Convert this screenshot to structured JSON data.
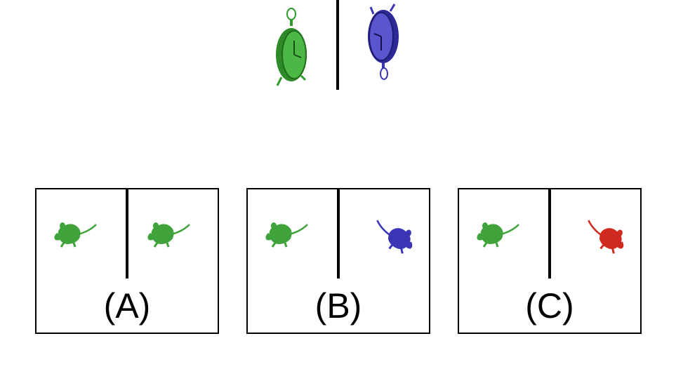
{
  "question": {
    "left_object": {
      "icon": "clock-icon",
      "color": "#2e9a2a",
      "orientation": "hanger-up"
    },
    "right_object": {
      "icon": "clock-icon",
      "color": "#3a35b5",
      "orientation": "hanger-down"
    }
  },
  "options": [
    {
      "label": "(A)",
      "left": {
        "icon": "mouse-icon",
        "color": "#3fa23a",
        "orientation": "normal"
      },
      "right": {
        "icon": "mouse-icon",
        "color": "#3fa23a",
        "orientation": "normal"
      }
    },
    {
      "label": "(B)",
      "left": {
        "icon": "mouse-icon",
        "color": "#3fa23a",
        "orientation": "normal"
      },
      "right": {
        "icon": "mouse-icon",
        "color": "#3a35b5",
        "orientation": "flipped"
      }
    },
    {
      "label": "(C)",
      "left": {
        "icon": "mouse-icon",
        "color": "#3fa23a",
        "orientation": "normal"
      },
      "right": {
        "icon": "mouse-icon",
        "color": "#d02a20",
        "orientation": "flipped"
      }
    }
  ]
}
